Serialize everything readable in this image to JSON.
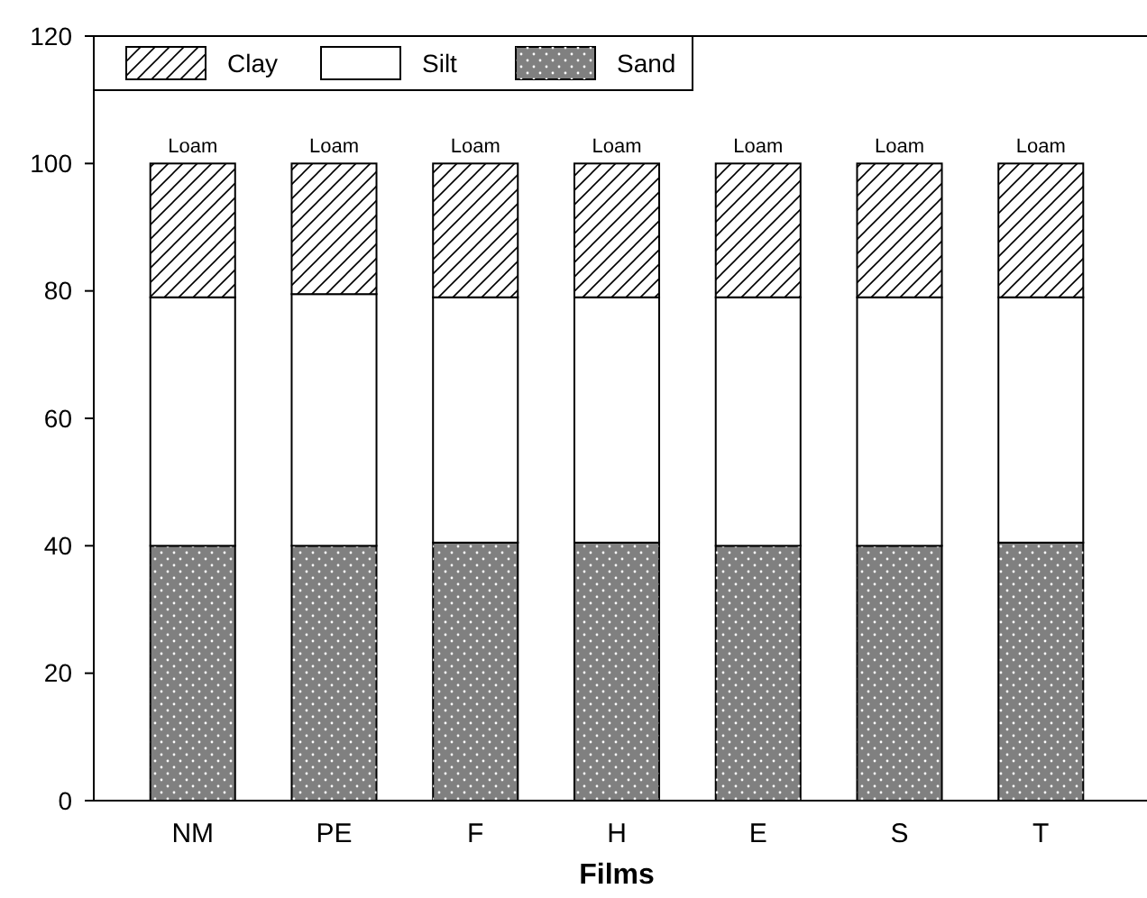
{
  "chart_data": {
    "type": "bar",
    "stacked": true,
    "xlabel": "Films",
    "categories": [
      "NM",
      "PE",
      "F",
      "H",
      "E",
      "S",
      "T"
    ],
    "series": [
      {
        "name": "Sand",
        "color": "#808080",
        "values": [
          40,
          40,
          40.5,
          40.5,
          40,
          40,
          40.5
        ]
      },
      {
        "name": "Silt",
        "color": "#ffffff",
        "values": [
          39,
          39.5,
          38.5,
          38.5,
          39,
          39,
          38.5
        ]
      },
      {
        "name": "Clay",
        "color": "#ffffff",
        "values": [
          21,
          20.5,
          21,
          21,
          21,
          21,
          21
        ]
      }
    ],
    "ylim": [
      0,
      120
    ],
    "yticks": [
      0,
      20,
      40,
      60,
      80,
      100,
      120
    ],
    "grid": false,
    "legend": "top left",
    "annotations": [
      {
        "text": "Loam",
        "x": "NM",
        "y": 100
      },
      {
        "text": "Loam",
        "x": "PE",
        "y": 100
      },
      {
        "text": "Loam",
        "x": "F",
        "y": 100
      },
      {
        "text": "Loam",
        "x": "H",
        "y": 100
      },
      {
        "text": "Loam",
        "x": "E",
        "y": 100
      },
      {
        "text": "Loam",
        "x": "S",
        "y": 100
      },
      {
        "text": "Loam",
        "x": "T",
        "y": 100
      }
    ]
  }
}
